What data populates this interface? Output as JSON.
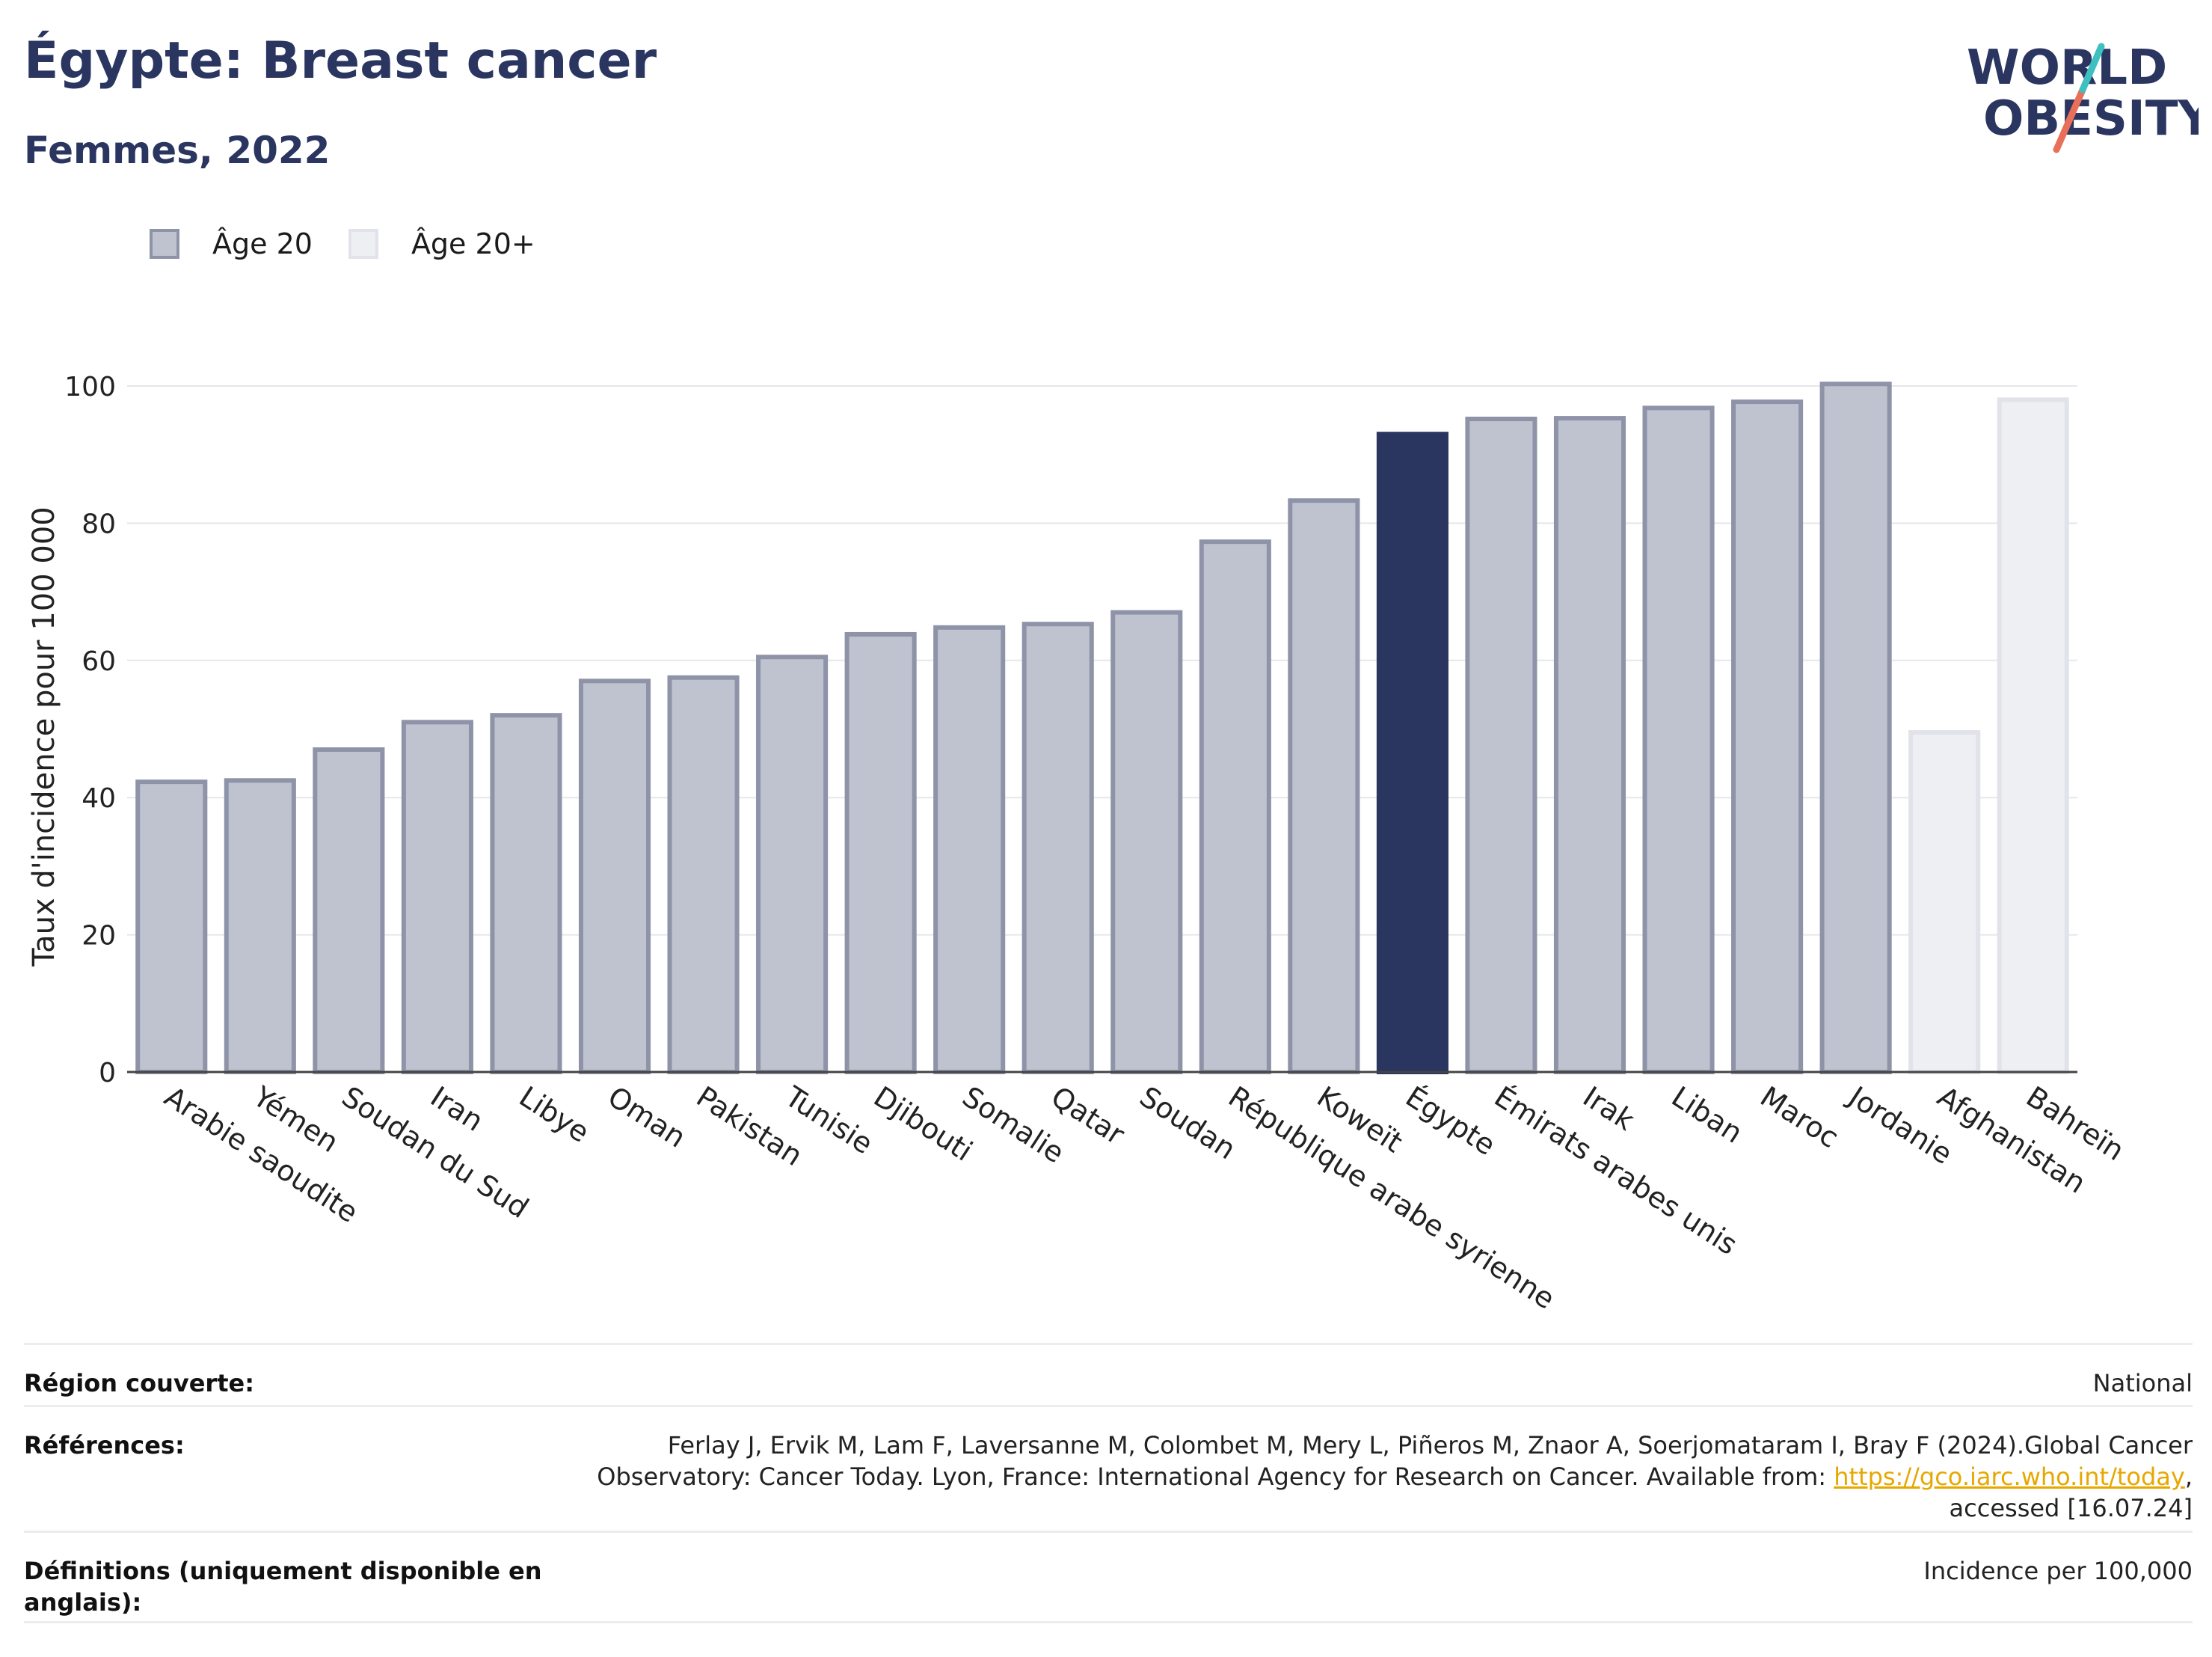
{
  "header": {
    "title": "Égypte: Breast cancer",
    "subtitle": "Femmes, 2022"
  },
  "logo": {
    "line1": "WORLD",
    "line2": "OBESITY",
    "accent_color": "#e8705a",
    "accent_color2": "#3fc0c0"
  },
  "legend": [
    {
      "label": "Âge 20",
      "color": "#bfc2cf",
      "border": "#8e93a8"
    },
    {
      "label": "Âge 20+",
      "color": "#eeeff3",
      "border": "#e2e3ea"
    }
  ],
  "colors": {
    "bar_fill": "#bfc2cf",
    "bar_border": "#8e93a8",
    "highlight": "#2a3560",
    "light_fill": "#eeeff3",
    "light_border": "#e2e3ea"
  },
  "chart_data": {
    "type": "bar",
    "ylabel": "Taux d'incidence pour 100 000",
    "ylim": [
      0,
      100
    ],
    "yticks": [
      0,
      20,
      40,
      60,
      80,
      100
    ],
    "grid": true,
    "categories": [
      "Arabie saoudite",
      "Yémen",
      "Soudan du Sud",
      "Iran",
      "Libye",
      "Oman",
      "Pakistan",
      "Tunisie",
      "Djibouti",
      "Somalie",
      "Qatar",
      "Soudan",
      "République arabe syrienne",
      "Koweït",
      "Égypte",
      "Émirats arabes unis",
      "Irak",
      "Liban",
      "Maroc",
      "Jordanie",
      "Afghanistan",
      "Bahreïn"
    ],
    "values": [
      42.3,
      42.5,
      47,
      51,
      52,
      57,
      57.5,
      60.5,
      63.8,
      64.8,
      65.3,
      67,
      77.3,
      83.3,
      93,
      95.2,
      95.3,
      96.8,
      97.7,
      100.3,
      49.5,
      98
    ],
    "groups": [
      "Âge 20",
      "Âge 20",
      "Âge 20",
      "Âge 20",
      "Âge 20",
      "Âge 20",
      "Âge 20",
      "Âge 20",
      "Âge 20",
      "Âge 20",
      "Âge 20",
      "Âge 20",
      "Âge 20",
      "Âge 20",
      "highlight",
      "Âge 20",
      "Âge 20",
      "Âge 20",
      "Âge 20",
      "Âge 20",
      "Âge 20+",
      "Âge 20+"
    ]
  },
  "table": {
    "rows": [
      {
        "label": "Région couverte:",
        "value": "National"
      },
      {
        "label": "Références:",
        "value_pre": "Ferlay J, Ervik M, Lam F, Laversanne M, Colombet M, Mery L, Piñeros M, Znaor A, Soerjomataram I, Bray F (2024).Global Cancer Observatory: Cancer Today. Lyon, France: International Agency for Research on Cancer. Available from: ",
        "link": "https://gco.iarc.who.int/today",
        "value_post": ", accessed [16.07.24]"
      },
      {
        "label": "Définitions (uniquement disponible en anglais):",
        "value": "Incidence per 100,000"
      }
    ]
  }
}
